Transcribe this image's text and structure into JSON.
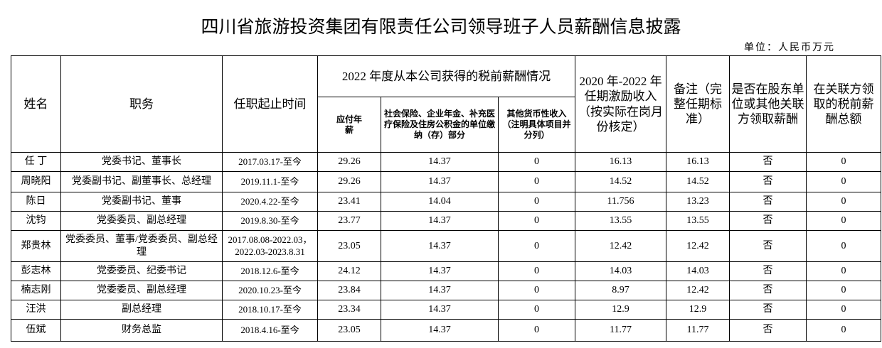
{
  "title": "四川省旅游投资集团有限责任公司领导班子人员薪酬信息披露",
  "unit": "单位：人民币万元",
  "table": {
    "headers": {
      "name": "姓名",
      "position": "职务",
      "term": "任职起止时间",
      "group": "2022 年度从本公司获得的税前薪酬情况",
      "salary": "应付年薪",
      "insurance": "社会保险、企业年金、补充医疗保险及住房公积金的单位缴纳（存）部分",
      "other": "其他货币性收入（注明具体项目并分列）",
      "incentive": "2020 年-2022 年任期激励收入（按实际在岗月份核定）",
      "note": "备注（完整任期标准）",
      "related": "是否在股东单位或其他关联方领取薪酬",
      "related_total": "在关联方领取的税前薪酬总额"
    },
    "rows": [
      [
        "任 丁",
        "党委书记、董事长",
        "2017.03.17-至今",
        "29.26",
        "14.37",
        "0",
        "16.13",
        "16.13",
        "否",
        "0"
      ],
      [
        "周晓阳",
        "党委副书记、副董事长、总经理",
        "2019.11.1-至今",
        "29.26",
        "14.37",
        "0",
        "14.52",
        "14.52",
        "否",
        "0"
      ],
      [
        "陈日",
        "党委副书记、董事",
        "2020.4.22-至今",
        "23.41",
        "14.04",
        "0",
        "11.756",
        "13.23",
        "否",
        "0"
      ],
      [
        "沈钧",
        "党委委员、副总经理",
        "2019.8.30-至今",
        "23.77",
        "14.37",
        "0",
        "13.55",
        "13.55",
        "否",
        "0"
      ],
      [
        "郑贵林",
        "党委委员、董事/党委委员、副总经理",
        "2017.08.08-2022.03，2022.03-2023.8.31",
        "23.05",
        "14.37",
        "0",
        "12.42",
        "12.42",
        "否",
        "0"
      ],
      [
        "彭志林",
        "党委委员、纪委书记",
        "2018.12.6-至今",
        "24.12",
        "14.37",
        "0",
        "14.03",
        "14.03",
        "否",
        "0"
      ],
      [
        "楠志刚",
        "党委委员、副总经理",
        "2020.10.23-至今",
        "23.84",
        "14.37",
        "0",
        "8.97",
        "12.42",
        "否",
        "0"
      ],
      [
        "汪洪",
        "副总经理",
        "2018.10.17-至今",
        "23.34",
        "14.37",
        "0",
        "12.9",
        "12.9",
        "否",
        "0"
      ],
      [
        "伍斌",
        "财务总监",
        "2018.4.16-至今",
        "23.05",
        "14.37",
        "0",
        "11.77",
        "11.77",
        "否",
        "0"
      ]
    ]
  }
}
